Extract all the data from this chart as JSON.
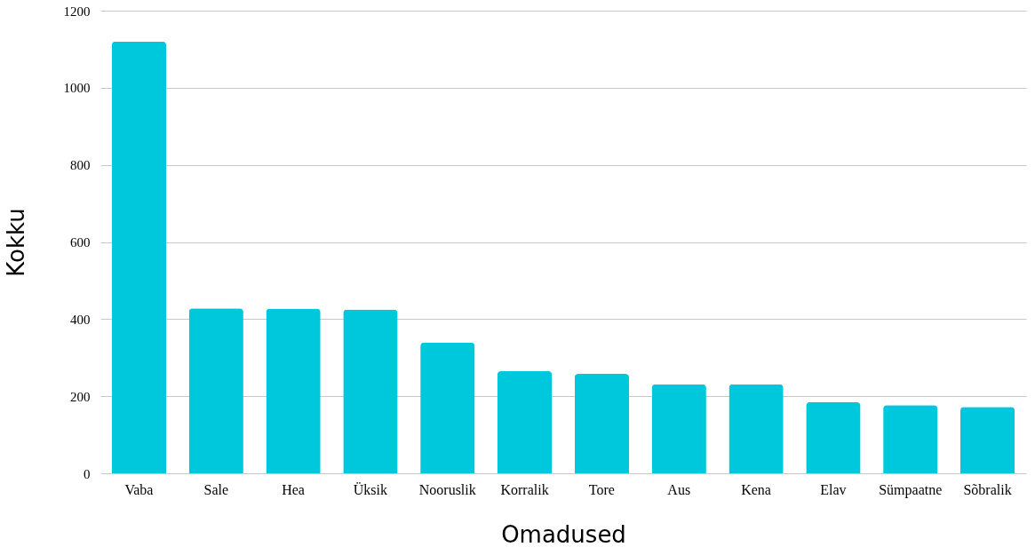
{
  "chart_data": {
    "type": "bar",
    "xlabel": "Omadused",
    "ylabel": "Kokku",
    "categories": [
      "Vaba",
      "Sale",
      "Hea",
      "Üksik",
      "Nooruslik",
      "Korralik",
      "Tore",
      "Aus",
      "Kena",
      "Elav",
      "Sümpaatne",
      "Sõbralik"
    ],
    "values": [
      1120,
      428,
      427,
      425,
      339,
      265,
      258,
      231,
      231,
      184,
      177,
      172
    ],
    "color": "#00c8dc",
    "ylim": [
      0,
      1200
    ],
    "yticks": [
      0,
      200,
      400,
      600,
      800,
      1000,
      1200
    ],
    "grid": "y"
  }
}
